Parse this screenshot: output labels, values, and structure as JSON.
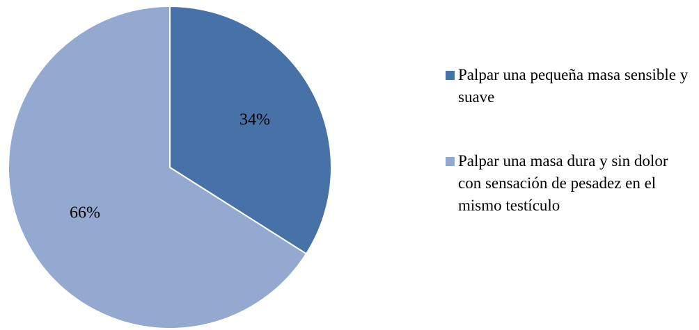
{
  "chart_data": {
    "type": "pie",
    "categories": [
      "Palpar una pequeña masa sensible y suave",
      "Palpar una masa dura y sin dolor con sensación de pesadez en el mismo testículo"
    ],
    "values": [
      34,
      66
    ],
    "value_labels": [
      "34%",
      "66%"
    ],
    "colors": [
      "#4672a8",
      "#94a9d0"
    ],
    "legend": "right"
  }
}
